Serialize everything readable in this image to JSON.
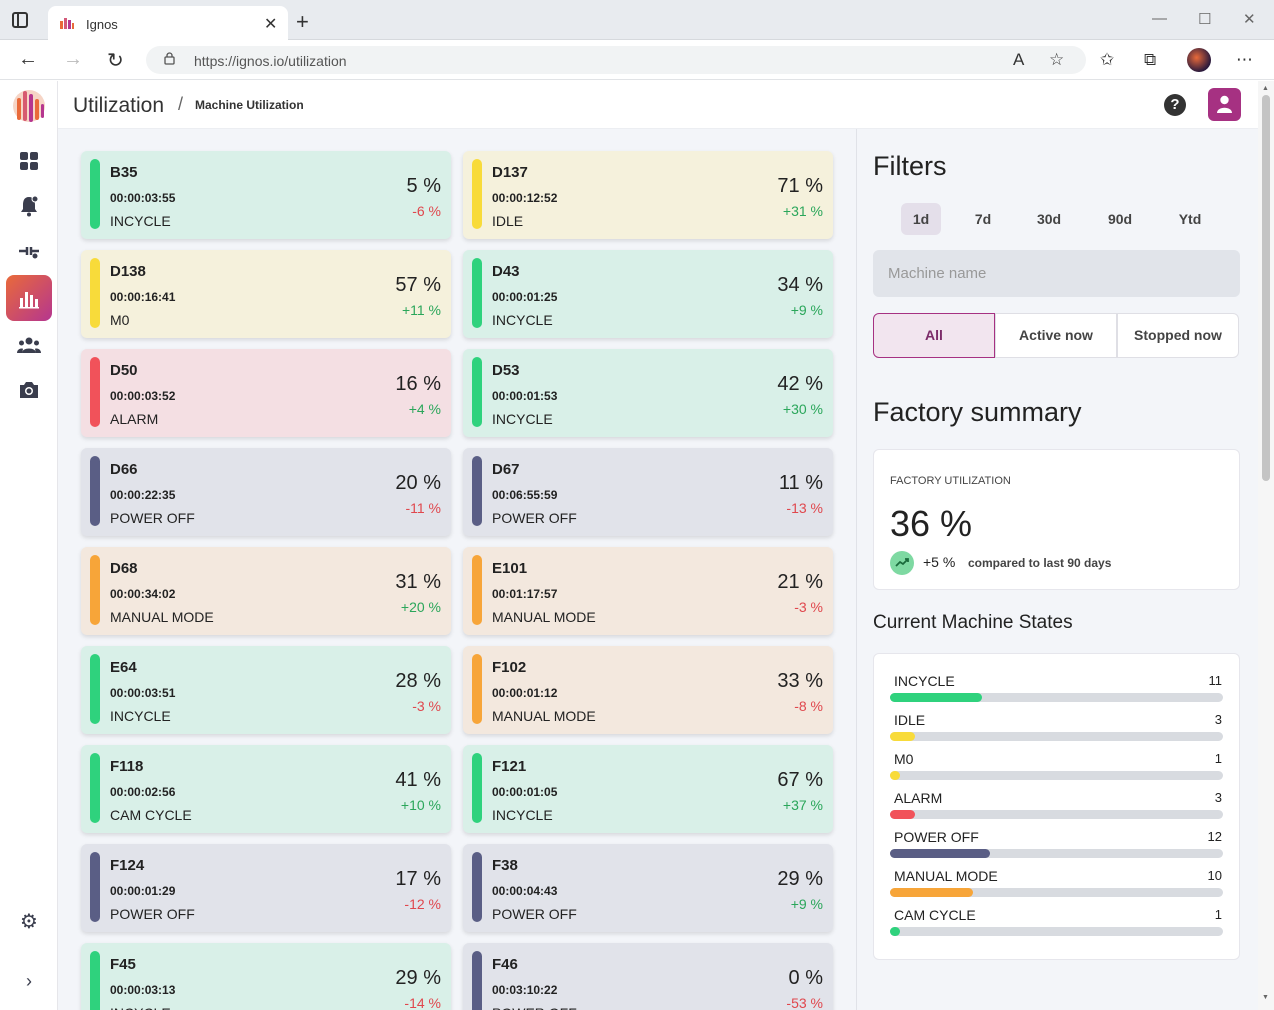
{
  "browser": {
    "tab_title": "Ignos",
    "url": "https://ignos.io/utilization"
  },
  "header": {
    "title": "Utilization",
    "separator": "/",
    "breadcrumb": "Machine Utilization",
    "help_label": "?"
  },
  "colors": {
    "green": "#2fd27d",
    "yellow": "#f8db3a",
    "red": "#f1525a",
    "slate": "#5a5e85",
    "orange": "#f7a539",
    "accent": "#a63182",
    "positive": "#2aa65a",
    "negative": "#e0474d"
  },
  "machines": [
    {
      "name": "B35",
      "time": "00:00:03:55",
      "state": "INCYCLE",
      "pct": "5 %",
      "delta": "-6 %",
      "positive": false,
      "color": "#2fd27d",
      "bg": "#d9f0e8"
    },
    {
      "name": "D137",
      "time": "00:00:12:52",
      "state": "IDLE",
      "pct": "71 %",
      "delta": "+31 %",
      "positive": true,
      "color": "#f8db3a",
      "bg": "#f5f1dc"
    },
    {
      "name": "D138",
      "time": "00:00:16:41",
      "state": "M0",
      "pct": "57 %",
      "delta": "+11 %",
      "positive": true,
      "color": "#f8db3a",
      "bg": "#f5f1dc"
    },
    {
      "name": "D43",
      "time": "00:00:01:25",
      "state": "INCYCLE",
      "pct": "34 %",
      "delta": "+9 %",
      "positive": true,
      "color": "#2fd27d",
      "bg": "#d9f0e8"
    },
    {
      "name": "D50",
      "time": "00:00:03:52",
      "state": "ALARM",
      "pct": "16 %",
      "delta": "+4 %",
      "positive": true,
      "color": "#f1525a",
      "bg": "#f4dfe3"
    },
    {
      "name": "D53",
      "time": "00:00:01:53",
      "state": "INCYCLE",
      "pct": "42 %",
      "delta": "+30 %",
      "positive": true,
      "color": "#2fd27d",
      "bg": "#d9f0e8"
    },
    {
      "name": "D66",
      "time": "00:00:22:35",
      "state": "POWER OFF",
      "pct": "20 %",
      "delta": "-11 %",
      "positive": false,
      "color": "#5a5e85",
      "bg": "#e1e3ea"
    },
    {
      "name": "D67",
      "time": "00:06:55:59",
      "state": "POWER OFF",
      "pct": "11 %",
      "delta": "-13 %",
      "positive": false,
      "color": "#5a5e85",
      "bg": "#e1e3ea"
    },
    {
      "name": "D68",
      "time": "00:00:34:02",
      "state": "MANUAL MODE",
      "pct": "31 %",
      "delta": "+20 %",
      "positive": true,
      "color": "#f7a539",
      "bg": "#f3e8de"
    },
    {
      "name": "E101",
      "time": "00:01:17:57",
      "state": "MANUAL MODE",
      "pct": "21 %",
      "delta": "-3 %",
      "positive": false,
      "color": "#f7a539",
      "bg": "#f3e8de"
    },
    {
      "name": "E64",
      "time": "00:00:03:51",
      "state": "INCYCLE",
      "pct": "28 %",
      "delta": "-3 %",
      "positive": false,
      "color": "#2fd27d",
      "bg": "#d9f0e8"
    },
    {
      "name": "F102",
      "time": "00:00:01:12",
      "state": "MANUAL MODE",
      "pct": "33 %",
      "delta": "-8 %",
      "positive": false,
      "color": "#f7a539",
      "bg": "#f3e8de"
    },
    {
      "name": "F118",
      "time": "00:00:02:56",
      "state": "CAM CYCLE",
      "pct": "41 %",
      "delta": "+10 %",
      "positive": true,
      "color": "#2fd27d",
      "bg": "#d9f0e8"
    },
    {
      "name": "F121",
      "time": "00:00:01:05",
      "state": "INCYCLE",
      "pct": "67 %",
      "delta": "+37 %",
      "positive": true,
      "color": "#2fd27d",
      "bg": "#d9f0e8"
    },
    {
      "name": "F124",
      "time": "00:00:01:29",
      "state": "POWER OFF",
      "pct": "17 %",
      "delta": "-12 %",
      "positive": false,
      "color": "#5a5e85",
      "bg": "#e1e3ea"
    },
    {
      "name": "F38",
      "time": "00:00:04:43",
      "state": "POWER OFF",
      "pct": "29 %",
      "delta": "+9 %",
      "positive": true,
      "color": "#5a5e85",
      "bg": "#e1e3ea"
    },
    {
      "name": "F45",
      "time": "00:00:03:13",
      "state": "INCYCLE",
      "pct": "29 %",
      "delta": "-14 %",
      "positive": false,
      "color": "#2fd27d",
      "bg": "#d9f0e8"
    },
    {
      "name": "F46",
      "time": "00:03:10:22",
      "state": "POWER OFF",
      "pct": "0 %",
      "delta": "-53 %",
      "positive": false,
      "color": "#5a5e85",
      "bg": "#e1e3ea"
    }
  ],
  "filters": {
    "title": "Filters",
    "ranges": [
      "1d",
      "7d",
      "30d",
      "90d",
      "Ytd"
    ],
    "active_range": "1d",
    "search_placeholder": "Machine name",
    "segments": [
      "All",
      "Active now",
      "Stopped now"
    ],
    "active_segment": "All"
  },
  "factory_summary": {
    "title": "Factory summary",
    "label": "FACTORY UTILIZATION",
    "value": "36 %",
    "delta": "+5 %",
    "compare_text": "compared to last 90 days"
  },
  "machine_states": {
    "title": "Current Machine States",
    "max": 40,
    "items": [
      {
        "label": "INCYCLE",
        "count": 11,
        "count_text": "11",
        "color": "#2fd27d"
      },
      {
        "label": "IDLE",
        "count": 3,
        "count_text": "3",
        "color": "#f8db3a"
      },
      {
        "label": "M0",
        "count": 1,
        "count_text": "1",
        "color": "#f8db3a"
      },
      {
        "label": "ALARM",
        "count": 3,
        "count_text": "3",
        "color": "#f1525a"
      },
      {
        "label": "POWER OFF",
        "count": 12,
        "count_text": "12",
        "color": "#5a5e85"
      },
      {
        "label": "MANUAL MODE",
        "count": 10,
        "count_text": "10",
        "color": "#f7a539"
      },
      {
        "label": "CAM CYCLE",
        "count": 1,
        "count_text": "1",
        "color": "#2fd27d"
      }
    ]
  }
}
